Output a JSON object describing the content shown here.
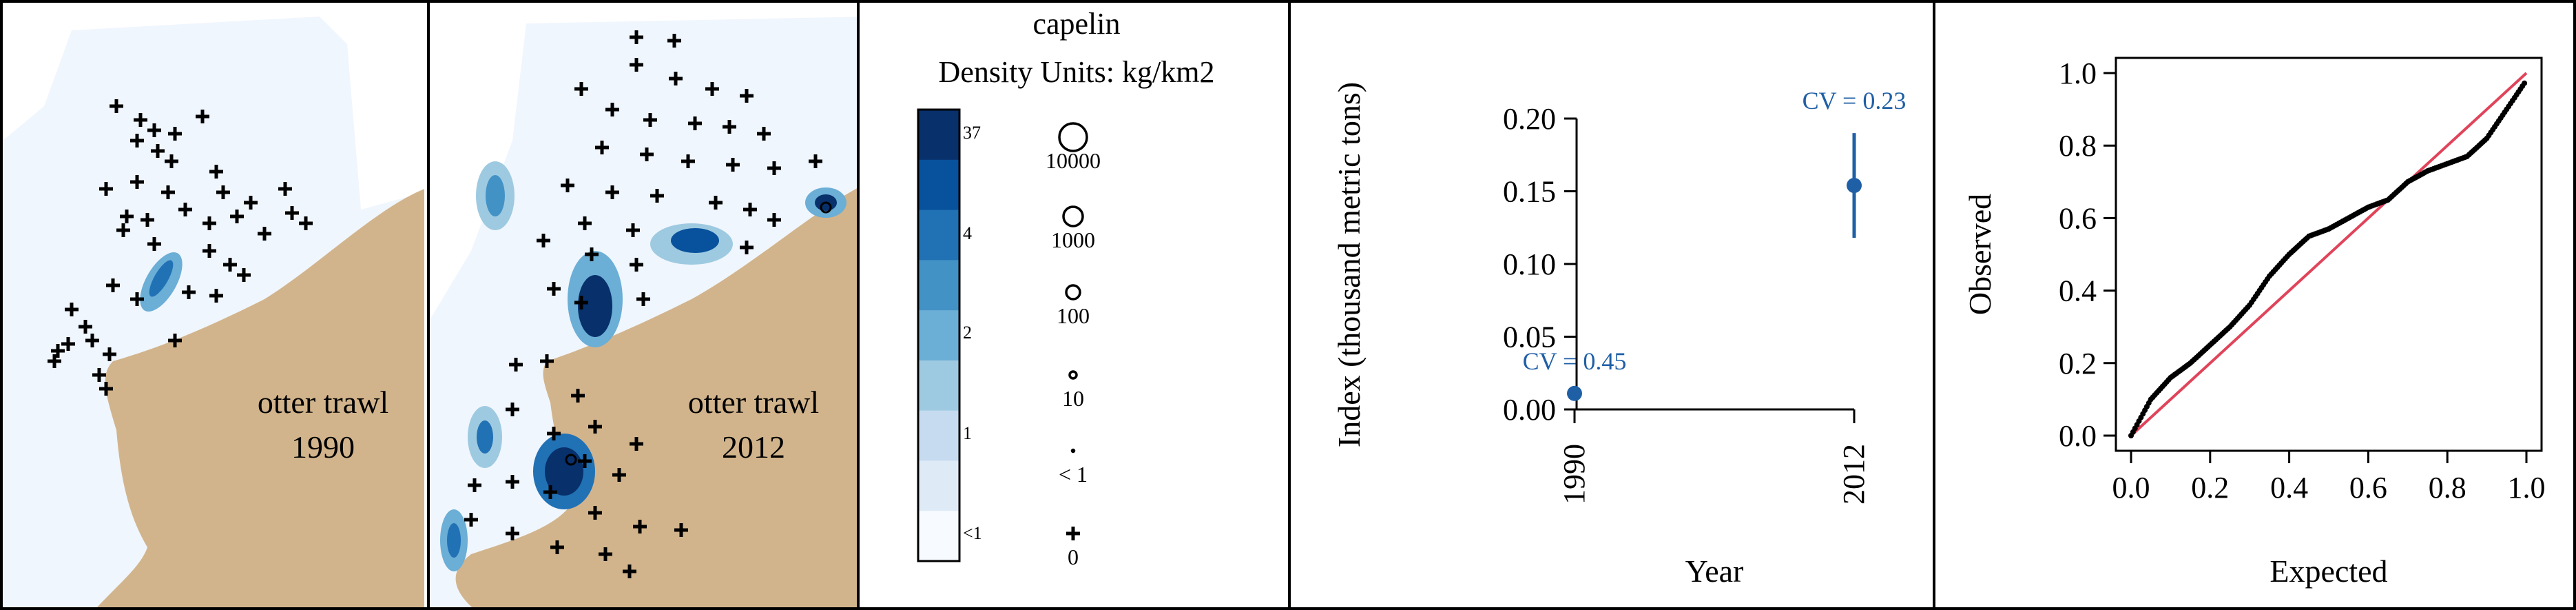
{
  "maps": [
    {
      "gear": "otter trawl",
      "year": "1990"
    },
    {
      "gear": "otter trawl",
      "year": "2012"
    }
  ],
  "legend": {
    "title": "capelin",
    "units": "Density Units: kg/km2",
    "color_scale": {
      "labels": [
        "37",
        "4",
        "2",
        "1",
        "<1"
      ],
      "colors": [
        "#08306b",
        "#08519c",
        "#2171b5",
        "#4292c6",
        "#6baed6",
        "#9ecae1",
        "#c6dbef",
        "#deebf7",
        "#f7fbff"
      ]
    },
    "symbols": [
      "10000",
      "1000",
      "100",
      "10",
      "< 1",
      "0"
    ]
  },
  "chart_data": [
    {
      "type": "scatter",
      "title": "",
      "xlabel": "Year",
      "ylabel": "Index (thousand metric tons)",
      "x_categories": [
        "1990",
        "2012"
      ],
      "yticks": [
        "0.00",
        "0.05",
        "0.10",
        "0.15",
        "0.20"
      ],
      "ylim": [
        0,
        0.2
      ],
      "points": [
        {
          "x": "1990",
          "y": 0.011,
          "low": 0.011,
          "high": 0.011,
          "label": "CV = 0.45"
        },
        {
          "x": "2012",
          "y": 0.154,
          "low": 0.118,
          "high": 0.19,
          "label": "CV = 0.23"
        }
      ],
      "color": "#1f5fa6"
    },
    {
      "type": "scatter",
      "title": "",
      "xlabel": "Expected",
      "ylabel": "Observed",
      "xticks": [
        "0.0",
        "0.2",
        "0.4",
        "0.6",
        "0.8",
        "1.0"
      ],
      "yticks": [
        "0.0",
        "0.2",
        "0.4",
        "0.6",
        "0.8",
        "1.0"
      ],
      "xlim": [
        0,
        1
      ],
      "ylim": [
        0,
        1
      ],
      "reference_line": {
        "from": [
          0,
          0
        ],
        "to": [
          1,
          1
        ],
        "color": "#e0445a"
      },
      "observed_curve": [
        [
          0,
          0
        ],
        [
          0.05,
          0.1
        ],
        [
          0.1,
          0.16
        ],
        [
          0.15,
          0.2
        ],
        [
          0.2,
          0.25
        ],
        [
          0.25,
          0.3
        ],
        [
          0.3,
          0.36
        ],
        [
          0.35,
          0.44
        ],
        [
          0.4,
          0.5
        ],
        [
          0.45,
          0.55
        ],
        [
          0.5,
          0.57
        ],
        [
          0.55,
          0.6
        ],
        [
          0.6,
          0.63
        ],
        [
          0.65,
          0.65
        ],
        [
          0.7,
          0.7
        ],
        [
          0.75,
          0.73
        ],
        [
          0.8,
          0.75
        ],
        [
          0.85,
          0.77
        ],
        [
          0.9,
          0.82
        ],
        [
          0.95,
          0.9
        ],
        [
          1.0,
          0.98
        ]
      ]
    }
  ]
}
